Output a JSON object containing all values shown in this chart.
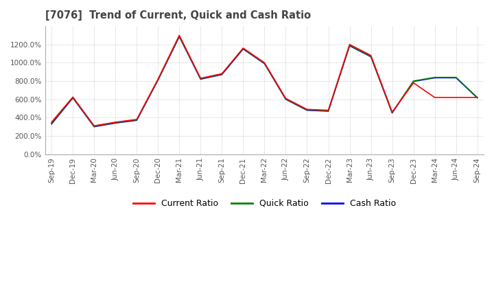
{
  "title": "[7076]  Trend of Current, Quick and Cash Ratio",
  "x_labels": [
    "Sep-19",
    "Dec-19",
    "Mar-20",
    "Jun-20",
    "Sep-20",
    "Dec-20",
    "Mar-21",
    "Jun-21",
    "Sep-21",
    "Dec-21",
    "Mar-22",
    "Jun-22",
    "Sep-22",
    "Dec-22",
    "Mar-23",
    "Jun-23",
    "Sep-23",
    "Dec-23",
    "Mar-24",
    "Jun-24",
    "Sep-24"
  ],
  "current_ratio": [
    350,
    625,
    310,
    350,
    380,
    820,
    1300,
    830,
    880,
    1160,
    1000,
    610,
    490,
    480,
    1200,
    1080,
    460,
    780,
    620,
    620,
    620
  ],
  "quick_ratio": [
    340,
    620,
    305,
    345,
    375,
    815,
    1290,
    825,
    875,
    1155,
    995,
    605,
    485,
    475,
    1190,
    1070,
    455,
    800,
    840,
    840,
    620
  ],
  "cash_ratio": [
    330,
    615,
    300,
    340,
    370,
    810,
    1285,
    820,
    870,
    1150,
    990,
    600,
    480,
    470,
    1185,
    1065,
    450,
    795,
    835,
    835,
    615
  ],
  "ylim": [
    0,
    1400
  ],
  "yticks": [
    0,
    200,
    400,
    600,
    800,
    1000,
    1200
  ],
  "colors": {
    "current": "#FF0000",
    "quick": "#008000",
    "cash": "#0000FF"
  },
  "grid_color": "#AAAAAA",
  "background_color": "#FFFFFF",
  "legend_labels": [
    "Current Ratio",
    "Quick Ratio",
    "Cash Ratio"
  ]
}
